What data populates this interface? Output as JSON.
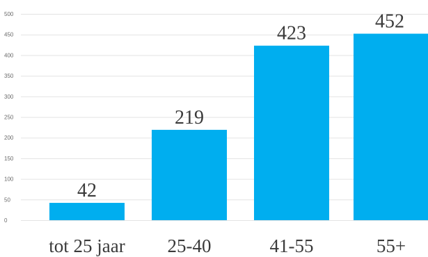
{
  "chart_data": {
    "type": "bar",
    "categories": [
      "tot 25 jaar",
      "25-40",
      "41-55",
      "55+"
    ],
    "values": [
      42,
      219,
      423,
      452
    ],
    "data_labels": [
      "42",
      "219",
      "423",
      "452"
    ],
    "yticks": [
      "0",
      "50",
      "100",
      "150",
      "200",
      "250",
      "300",
      "350",
      "400",
      "450",
      "500"
    ],
    "ylim": [
      0,
      500
    ],
    "grid": true,
    "bar_color": "#00AEEF",
    "title": "",
    "xlabel": "",
    "ylabel": ""
  }
}
